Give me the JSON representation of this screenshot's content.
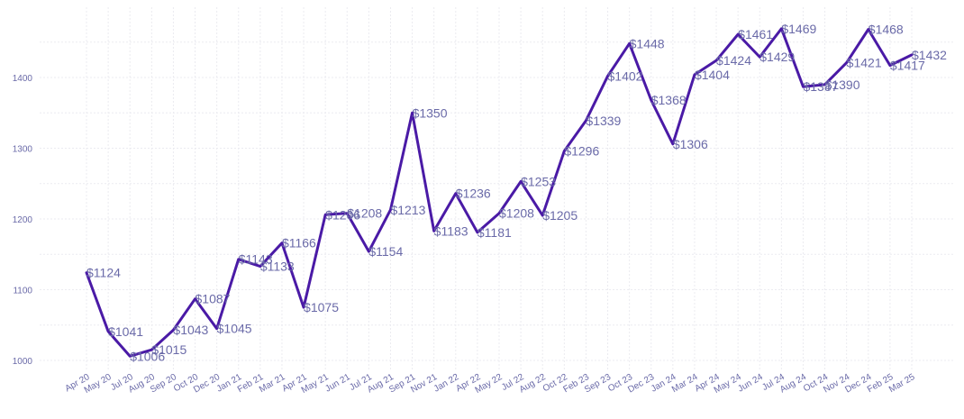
{
  "chart_data": {
    "type": "line",
    "title": "",
    "xlabel": "",
    "ylabel": "",
    "ylim": [
      985,
      1490
    ],
    "yticks": [
      1000,
      1100,
      1200,
      1300,
      1400
    ],
    "grid": true,
    "legend": "none",
    "line_color": "#4a1aa6",
    "categories": [
      "Apr 20",
      "May 20",
      "Jul 20",
      "Aug 20",
      "Sep 20",
      "Oct 20",
      "Dec 20",
      "Jan 21",
      "Feb 21",
      "Mar 21",
      "Apr 21",
      "May 21",
      "Jun 21",
      "Jul 21",
      "Aug 21",
      "Sep 21",
      "Nov 21",
      "Jan 22",
      "Apr 22",
      "May 22",
      "Jul 22",
      "Aug 22",
      "Oct 22",
      "Feb 23",
      "Sep 23",
      "Oct 23",
      "Dec 23",
      "Jan 24",
      "Mar 24",
      "Apr 24",
      "May 24",
      "Jun 24",
      "Jul 24",
      "Aug 24",
      "Oct 24",
      "Nov 24",
      "Dec 24",
      "Feb 25",
      "Mar 25"
    ],
    "values": [
      1124,
      1041,
      1006,
      1015,
      1043,
      1087,
      1045,
      1143,
      1133,
      1166,
      1075,
      1206,
      1208,
      1154,
      1213,
      1350,
      1183,
      1236,
      1181,
      1208,
      1253,
      1205,
      1296,
      1339,
      1402,
      1448,
      1368,
      1306,
      1404,
      1424,
      1461,
      1429,
      1469,
      1387,
      1390,
      1421,
      1468,
      1417,
      1432
    ],
    "data_labels": [
      "$1124",
      "$1041",
      "$1006",
      "$1015",
      "$1043",
      "$1087",
      "$1045",
      "$1143",
      "$1133",
      "$1166",
      "$1075",
      "$1206",
      "$1208",
      "$1154",
      "$1213",
      "$1350",
      "$1183",
      "$1236",
      "$1181",
      "$1208",
      "$1253",
      "$1205",
      "$1296",
      "$1339",
      "$1402",
      "$1448",
      "$1368",
      "$1306",
      "$1404",
      "$1424",
      "$1461",
      "$1429",
      "$1469",
      "$1387",
      "$1390",
      "$1421",
      "$1468",
      "$1417",
      "$1432"
    ]
  }
}
